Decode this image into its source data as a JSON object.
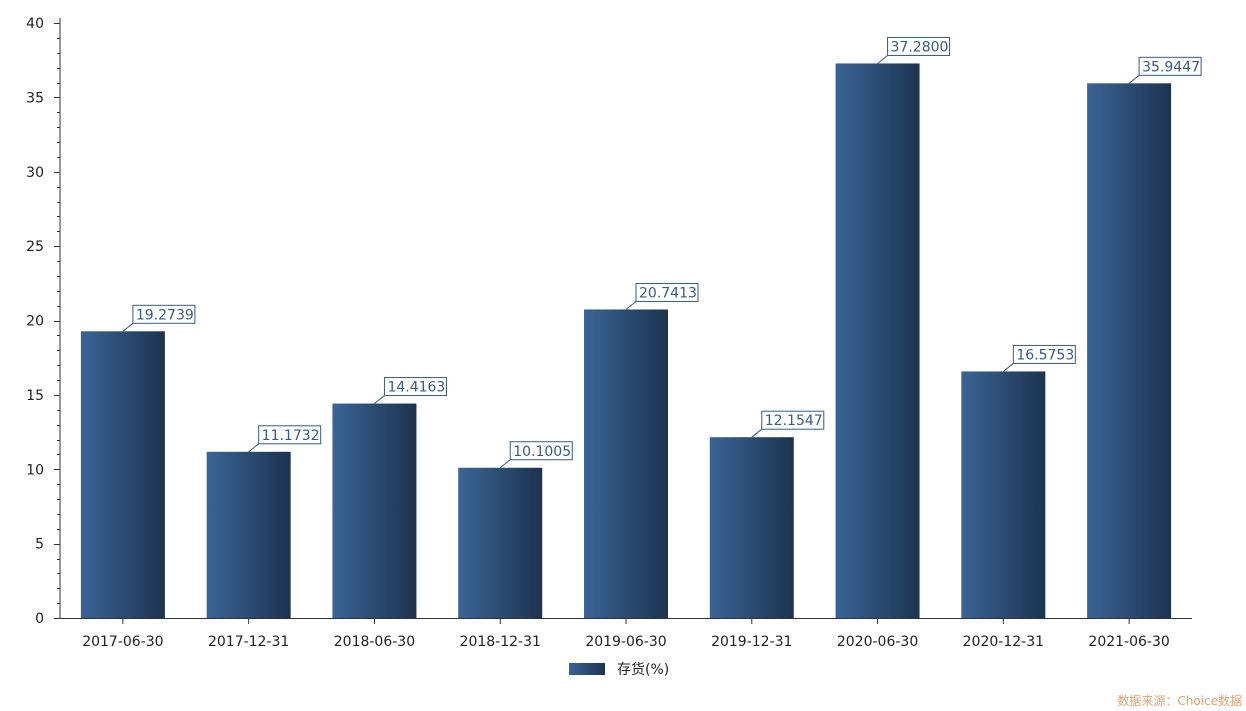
{
  "chart_data": {
    "type": "bar",
    "categories": [
      "2017-06-30",
      "2017-12-31",
      "2018-06-30",
      "2018-12-31",
      "2019-06-30",
      "2019-12-31",
      "2020-06-30",
      "2020-12-31",
      "2021-06-30"
    ],
    "series": [
      {
        "name": "存货(%)",
        "values": [
          19.2739,
          11.1732,
          14.4163,
          10.1005,
          20.7413,
          12.1547,
          37.28,
          16.5753,
          35.9447
        ],
        "labels": [
          "19.2739",
          "11.1732",
          "14.4163",
          "10.1005",
          "20.7413",
          "12.1547",
          "37.2800",
          "16.5753",
          "35.9447"
        ]
      }
    ],
    "ylim": [
      0,
      40
    ],
    "yticks": [
      "0",
      "5",
      "10",
      "15",
      "20",
      "25",
      "30",
      "35",
      "40"
    ],
    "legend_position": "bottom-center",
    "grid": false
  },
  "colors": {
    "bar_light": "#3a6496",
    "bar_dark": "#1d3350",
    "label_text": "#3a5a86",
    "source_text": "#e8a070"
  },
  "source": "数据来源：Choice数据"
}
